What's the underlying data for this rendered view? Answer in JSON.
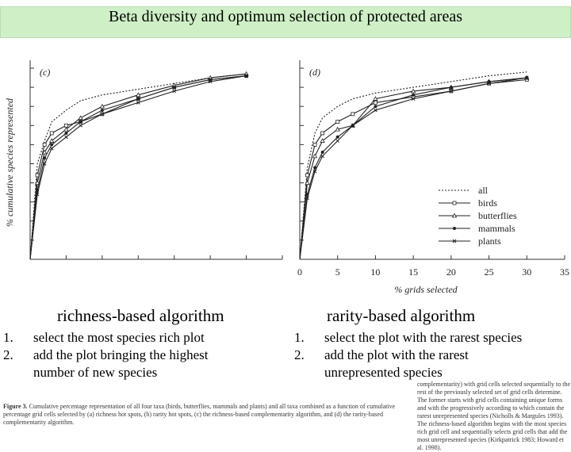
{
  "slide": {
    "title": "Beta diversity and optimum selection of protected areas"
  },
  "figure": {
    "ylabel": "% cumulative species represented",
    "xlabel": "% grids selected",
    "legend": [
      "all",
      "birds",
      "butterflies",
      "mammals",
      "plants"
    ]
  },
  "chart_data": [
    {
      "type": "line",
      "panel": "(c)",
      "ylabel": "% cumulative species represented",
      "ylim": [
        0,
        100
      ],
      "x": [
        0,
        1,
        2,
        3,
        5,
        7,
        10,
        15,
        20,
        25,
        30
      ],
      "series": [
        {
          "name": "all",
          "values": [
            0,
            50,
            62,
            72,
            78,
            83,
            86,
            89,
            92,
            95,
            97
          ]
        },
        {
          "name": "birds",
          "values": [
            0,
            44,
            60,
            66,
            70,
            72,
            76,
            84,
            90,
            94,
            96
          ]
        },
        {
          "name": "butterflies",
          "values": [
            0,
            40,
            56,
            62,
            68,
            74,
            80,
            86,
            91,
            95,
            97
          ]
        },
        {
          "name": "mammals",
          "values": [
            0,
            36,
            53,
            60,
            66,
            72,
            78,
            84,
            90,
            94,
            96
          ]
        },
        {
          "name": "plants",
          "values": [
            0,
            34,
            50,
            58,
            64,
            70,
            76,
            82,
            88,
            93,
            96
          ]
        }
      ]
    },
    {
      "type": "line",
      "panel": "(d)",
      "xlabel": "% grids selected",
      "xlim": [
        0,
        35
      ],
      "ylim": [
        0,
        100
      ],
      "xticks": [
        0,
        5,
        10,
        15,
        20,
        25,
        30,
        35
      ],
      "x": [
        0,
        1,
        2,
        3,
        5,
        7,
        10,
        15,
        20,
        25,
        30
      ],
      "series": [
        {
          "name": "all",
          "values": [
            0,
            48,
            66,
            74,
            80,
            84,
            87,
            90,
            93,
            96,
            98
          ]
        },
        {
          "name": "birds",
          "values": [
            0,
            44,
            60,
            66,
            72,
            76,
            82,
            85,
            88,
            92,
            94
          ]
        },
        {
          "name": "butterflies",
          "values": [
            0,
            40,
            54,
            62,
            68,
            70,
            84,
            88,
            90,
            93,
            95
          ]
        },
        {
          "name": "mammals",
          "values": [
            0,
            34,
            48,
            56,
            64,
            70,
            80,
            86,
            90,
            93,
            95
          ]
        },
        {
          "name": "plants",
          "values": [
            0,
            32,
            46,
            54,
            62,
            70,
            78,
            84,
            88,
            92,
            95
          ]
        }
      ]
    }
  ],
  "richness": {
    "title": "richness-based algorithm",
    "steps": [
      {
        "num": "1.",
        "text": "select the most species rich plot"
      },
      {
        "num": "2.",
        "text": "add the plot bringing the highest number of new species"
      }
    ]
  },
  "rarity": {
    "title": "rarity-based algorithm",
    "steps": [
      {
        "num": "1.",
        "text": "select the plot with the rarest species"
      },
      {
        "num": "2.",
        "text": "add the plot with the rarest unrepresented species"
      }
    ]
  },
  "caption_left": {
    "label": "Figure 3.",
    "text": "Cumulative percentage representation of all four taxa (birds, butterflies, mammals and plants) and all taxa combined as a function of cumulative percentage grid cells selected by (a) richness hot spots, (b) rarity hot spots, (c) the richness-based complementarity algorithm, and (d) the rarity-based complementarity algorithm."
  },
  "caption_right": {
    "text": "complementarity) with grid cells selected sequentially to the rest of the previously selected set of grid cells determine. The former starts with grid cells containing unique forms and with the progressively according to which contain the rarest unrepresented species (Nicholls & Margules 1993). The richness-based algorithm begins with the most species rich grid cell and sequentially selects grid cells that add the most unrepresented species (Kirkpatrick 1983; Howard et al. 1998)."
  }
}
